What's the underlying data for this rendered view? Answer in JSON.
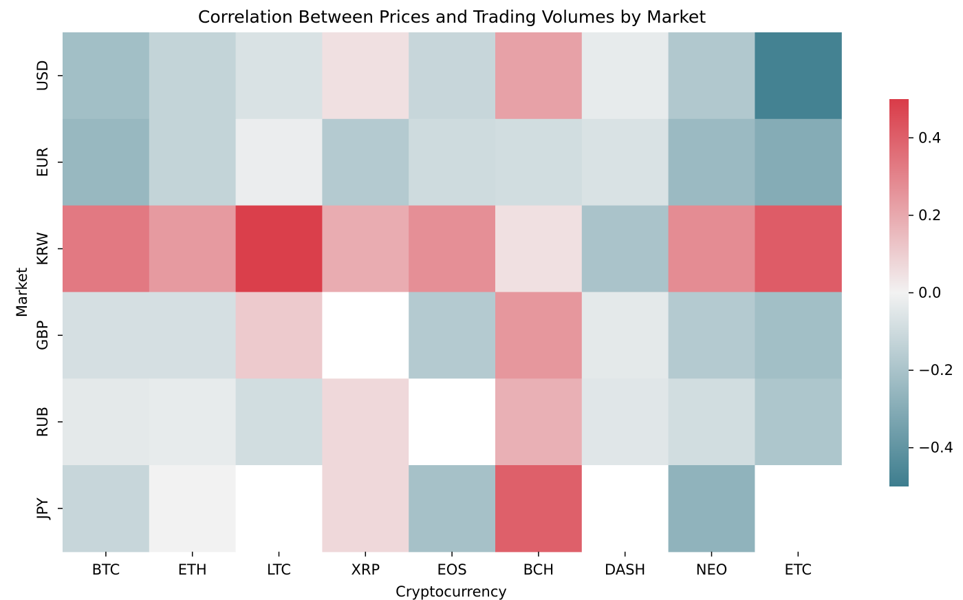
{
  "chart_data": {
    "type": "heatmap",
    "title": "Correlation Between Prices and Trading Volumes by Market",
    "xlabel": "Cryptocurrency",
    "ylabel": "Market",
    "x_categories": [
      "BTC",
      "ETH",
      "LTC",
      "XRP",
      "EOS",
      "BCH",
      "DASH",
      "NEO",
      "ETC"
    ],
    "y_categories": [
      "USD",
      "EUR",
      "KRW",
      "GBP",
      "RUB",
      "JPY"
    ],
    "values": [
      [
        -0.22,
        -0.13,
        -0.07,
        0.05,
        -0.12,
        0.22,
        -0.03,
        -0.18,
        -0.48
      ],
      [
        -0.25,
        -0.13,
        -0.02,
        -0.17,
        -0.1,
        -0.09,
        -0.07,
        -0.24,
        -0.3
      ],
      [
        0.33,
        0.24,
        0.49,
        0.19,
        0.27,
        0.05,
        -0.2,
        0.28,
        0.41
      ],
      [
        -0.08,
        -0.08,
        0.11,
        null,
        -0.17,
        0.25,
        -0.04,
        -0.17,
        -0.22
      ],
      [
        -0.04,
        -0.03,
        -0.09,
        0.07,
        null,
        0.18,
        -0.05,
        -0.09,
        -0.19
      ],
      [
        -0.12,
        0.0,
        null,
        0.07,
        -0.21,
        0.4,
        null,
        -0.27,
        null
      ]
    ],
    "colorbar": {
      "vmin": -0.5,
      "vmax": 0.5,
      "ticks": [
        0.4,
        0.2,
        0.0,
        -0.2,
        -0.4
      ],
      "tick_labels": [
        "0.4",
        "0.2",
        "0.0",
        "−0.2",
        "−0.4"
      ],
      "low_color": "#3d7d8e",
      "mid_color": "#f2f2f2",
      "high_color": "#d93b48"
    },
    "missing_color": "#ffffff",
    "grid": false,
    "legend": "colorbar-right"
  }
}
